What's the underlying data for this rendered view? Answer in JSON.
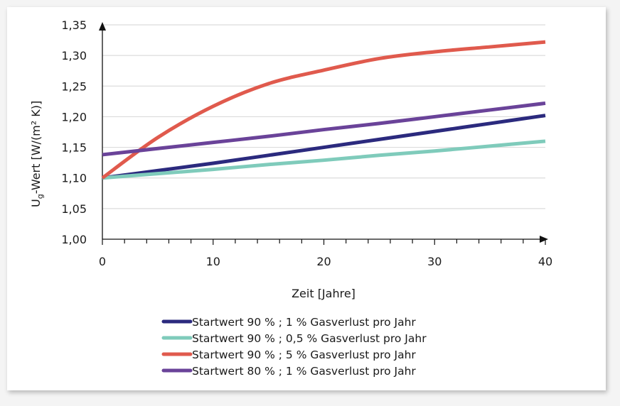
{
  "chart_data": {
    "type": "line",
    "title": "",
    "xlabel": "Zeit [Jahre]",
    "ylabel_main": "U",
    "ylabel_sub": "g",
    "ylabel_rest": "-Wert [W/(m² K)]",
    "xlim": [
      0,
      40
    ],
    "ylim": [
      1.0,
      1.35
    ],
    "xticks": [
      0,
      10,
      20,
      30,
      40
    ],
    "xtick_labels": [
      "0",
      "10",
      "20",
      "30",
      "40"
    ],
    "yticks": [
      1.0,
      1.05,
      1.1,
      1.15,
      1.2,
      1.25,
      1.3,
      1.35
    ],
    "ytick_labels": [
      "1,00",
      "1,05",
      "1,10",
      "1,15",
      "1,20",
      "1,25",
      "1,30",
      "1,35"
    ],
    "grid": "horizontal",
    "legend_position": "bottom",
    "x": [
      0,
      5,
      10,
      15,
      20,
      25,
      30,
      35,
      40
    ],
    "series": [
      {
        "name": "Startwert 90 % ; 1 % Gasverlust pro Jahr",
        "color": "#2b2a7e",
        "values": [
          1.1,
          1.112,
          1.124,
          1.137,
          1.15,
          1.163,
          1.176,
          1.189,
          1.202
        ]
      },
      {
        "name": "Startwert 90 % ; 0,5 % Gasverlust pro Jahr",
        "color": "#7fcbbb",
        "values": [
          1.1,
          1.107,
          1.114,
          1.122,
          1.129,
          1.137,
          1.144,
          1.152,
          1.16
        ]
      },
      {
        "name": "Startwert 90 % ; 5 % Gasverlust pro Jahr",
        "color": "#e05a4d",
        "values": [
          1.1,
          1.166,
          1.217,
          1.254,
          1.276,
          1.295,
          1.306,
          1.314,
          1.322
        ]
      },
      {
        "name": "Startwert 80 % ; 1 % Gasverlust pro Jahr",
        "color": "#6a4399",
        "values": [
          1.138,
          1.148,
          1.158,
          1.168,
          1.179,
          1.189,
          1.2,
          1.211,
          1.222
        ]
      }
    ]
  }
}
